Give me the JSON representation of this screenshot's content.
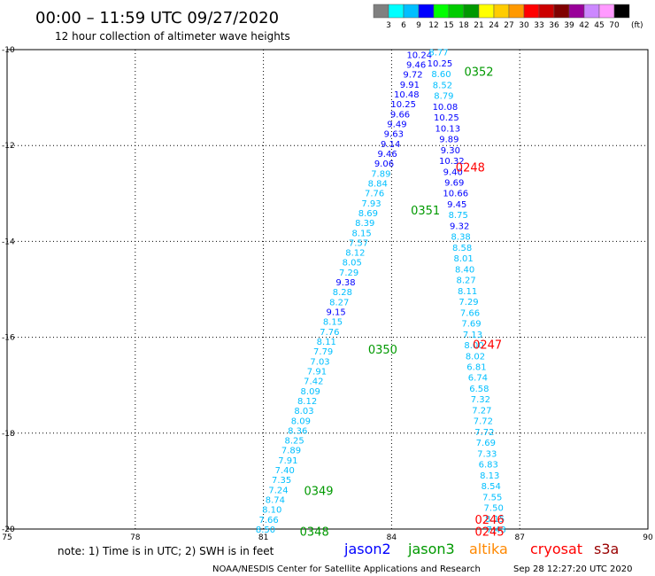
{
  "header": {
    "title": "00:00 – 11:59 UTC 09/27/2020",
    "subtitle": "12 hour collection of altimeter wave heights"
  },
  "color_scale": {
    "colors": [
      "#808080",
      "#00ffff",
      "#00bfff",
      "#0000ff",
      "#00ff00",
      "#00cc00",
      "#009900",
      "#ffff00",
      "#ffcc00",
      "#ff9900",
      "#ff0000",
      "#cc0000",
      "#800000",
      "#990099",
      "#cc88ff",
      "#ff99ff",
      "#000000"
    ],
    "labels": [
      "3",
      "6",
      "9",
      "12",
      "15",
      "18",
      "21",
      "24",
      "27",
      "30",
      "33",
      "36",
      "39",
      "42",
      "45",
      "70"
    ],
    "unit": "(ft)"
  },
  "axes": {
    "x_ticks": [
      "75",
      "78",
      "81",
      "84",
      "87",
      "90"
    ],
    "y_ticks": [
      "-10",
      "-12",
      "-14",
      "-16",
      "-18",
      "-20"
    ]
  },
  "satellites": [
    {
      "name": "jason2",
      "color": "#0000ff"
    },
    {
      "name": "jason3",
      "color": "#009900"
    },
    {
      "name": "altika",
      "color": "#ff8800"
    },
    {
      "name": "cryosat",
      "color": "#ff0000"
    },
    {
      "name": "s3a",
      "color": "#990000"
    }
  ],
  "note": "note:  1) Time is in UTC;  2) SWH is in feet",
  "footer": {
    "credit": "NOAA/NESDIS Center for Satellite Applications and Research",
    "timestamp": "Sep 28 12:27:20 UTC 2020"
  },
  "pass_labels": [
    {
      "text": "0352",
      "lon": 85.7,
      "lat": -10.45,
      "color": "#009900"
    },
    {
      "text": "0248",
      "lon": 85.5,
      "lat": -12.45,
      "color": "#ff0000"
    },
    {
      "text": "0351",
      "lon": 84.45,
      "lat": -13.35,
      "color": "#009900"
    },
    {
      "text": "0350",
      "lon": 83.45,
      "lat": -16.25,
      "color": "#009900"
    },
    {
      "text": "0247",
      "lon": 85.9,
      "lat": -16.15,
      "color": "#ff0000"
    },
    {
      "text": "0349",
      "lon": 81.95,
      "lat": -19.2,
      "color": "#009900"
    },
    {
      "text": "0348",
      "lon": 81.85,
      "lat": -20.05,
      "color": "#009900"
    },
    {
      "text": "0246",
      "lon": 85.95,
      "lat": -19.8,
      "color": "#ff0000"
    },
    {
      "text": "0245",
      "lon": 85.95,
      "lat": -20.05,
      "color": "#ff0000"
    }
  ],
  "wave_tracks": [
    {
      "name": "descending-track",
      "start": {
        "lon": 84.65,
        "lat": -10.1
      },
      "end": {
        "lon": 81.05,
        "lat": -20.0
      },
      "values": [
        "10.24",
        "9.46",
        "9.72",
        "9.91",
        "10.48",
        "10.25",
        "9.66",
        "9.49",
        "9.63",
        "9.14",
        "9.46",
        "9.06",
        "7.89",
        "8.84",
        "7.76",
        "7.93",
        "8.69",
        "8.39",
        "8.15",
        "7.57",
        "8.12",
        "8.05",
        "7.29",
        "9.38",
        "8.28",
        "8.27",
        "9.15",
        "8.15",
        "7.76",
        "8.11",
        "7.79",
        "7.03",
        "7.91",
        "7.42",
        "8.09",
        "8.12",
        "8.03",
        "8.09",
        "8.36",
        "8.25",
        "7.89",
        "7.91",
        "7.40",
        "7.35",
        "7.24",
        "8.74",
        "8.10",
        "7.66",
        "8.50"
      ],
      "colors": [
        "#0000ff",
        "#0000ff",
        "#0000ff",
        "#0000ff",
        "#0000ff",
        "#0000ff",
        "#0000ff",
        "#0000ff",
        "#0000ff",
        "#0000ff",
        "#0000ff",
        "#0000ff",
        "#00bfff",
        "#00bfff",
        "#00bfff",
        "#00bfff",
        "#00bfff",
        "#00bfff",
        "#00bfff",
        "#00bfff",
        "#00bfff",
        "#00bfff",
        "#00bfff",
        "#0000ff",
        "#00bfff",
        "#00bfff",
        "#0000ff",
        "#00bfff",
        "#00bfff",
        "#00bfff",
        "#00bfff",
        "#00bfff",
        "#00bfff",
        "#00bfff",
        "#00bfff",
        "#00bfff",
        "#00bfff",
        "#00bfff",
        "#00bfff",
        "#00bfff",
        "#00bfff",
        "#00bfff",
        "#00bfff",
        "#00bfff",
        "#00bfff",
        "#00bfff",
        "#00bfff",
        "#00bfff",
        "#00bfff"
      ]
    },
    {
      "name": "ascending-track",
      "start": {
        "lon": 85.1,
        "lat": -10.05
      },
      "end": {
        "lon": 86.45,
        "lat": -20.0
      },
      "values": [
        "8.77",
        "10.25",
        "8.60",
        "8.52",
        "8.79",
        "10.08",
        "10.25",
        "10.13",
        "9.89",
        "9.30",
        "10.32",
        "9.40",
        "9.69",
        "10.66",
        "9.45",
        "8.75",
        "9.32",
        "8.38",
        "8.58",
        "8.01",
        "8.40",
        "8.27",
        "8.11",
        "7.29",
        "7.66",
        "7.69",
        "7.13",
        "8.00",
        "8.02",
        "6.81",
        "6.74",
        "6.58",
        "7.32",
        "7.27",
        "7.72",
        "7.72",
        "7.69",
        "7.33",
        "6.83",
        "8.13",
        "8.54",
        "7.55",
        "7.50",
        "8.15",
        "7.43"
      ],
      "colors": [
        "#00bfff",
        "#0000ff",
        "#00bfff",
        "#00bfff",
        "#00bfff",
        "#0000ff",
        "#0000ff",
        "#0000ff",
        "#0000ff",
        "#0000ff",
        "#0000ff",
        "#0000ff",
        "#0000ff",
        "#0000ff",
        "#0000ff",
        "#00bfff",
        "#0000ff",
        "#00bfff",
        "#00bfff",
        "#00bfff",
        "#00bfff",
        "#00bfff",
        "#00bfff",
        "#00bfff",
        "#00bfff",
        "#00bfff",
        "#00bfff",
        "#00bfff",
        "#00bfff",
        "#00bfff",
        "#00bfff",
        "#00bfff",
        "#00bfff",
        "#00bfff",
        "#00bfff",
        "#00bfff",
        "#00bfff",
        "#00bfff",
        "#00bfff",
        "#00bfff",
        "#00bfff",
        "#00bfff",
        "#00bfff",
        "#00bfff",
        "#00bfff"
      ]
    }
  ],
  "map_extent": {
    "lon_min": 75,
    "lon_max": 90,
    "lat_min": -20,
    "lat_max": -10
  }
}
